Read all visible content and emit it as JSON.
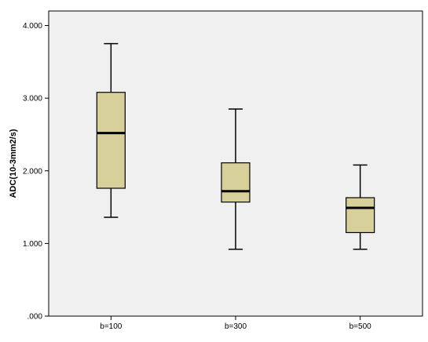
{
  "chart_data": {
    "type": "box",
    "ylabel": "ADC(10-3mm2/s)",
    "xlabel": "",
    "ylim": [
      0,
      4.2
    ],
    "y_ticks": [
      {
        "value": 0,
        "label": ".000"
      },
      {
        "value": 1,
        "label": "1.000"
      },
      {
        "value": 2,
        "label": "2.000"
      },
      {
        "value": 3,
        "label": "3.000"
      },
      {
        "value": 4,
        "label": "4.000"
      }
    ],
    "categories": [
      "b=100",
      "b=300",
      "b=500"
    ],
    "boxes": [
      {
        "category": "b=100",
        "min": 1.36,
        "q1": 1.76,
        "median": 2.52,
        "q3": 3.08,
        "max": 3.75
      },
      {
        "category": "b=300",
        "min": 0.92,
        "q1": 1.57,
        "median": 1.72,
        "q3": 2.11,
        "max": 2.85
      },
      {
        "category": "b=500",
        "min": 0.92,
        "q1": 1.15,
        "median": 1.49,
        "q3": 1.63,
        "max": 2.08
      }
    ],
    "grid": false,
    "colors": {
      "plot_background": "#f0f0f0",
      "box_fill": "#d8d09a",
      "stroke": "#000000"
    }
  }
}
